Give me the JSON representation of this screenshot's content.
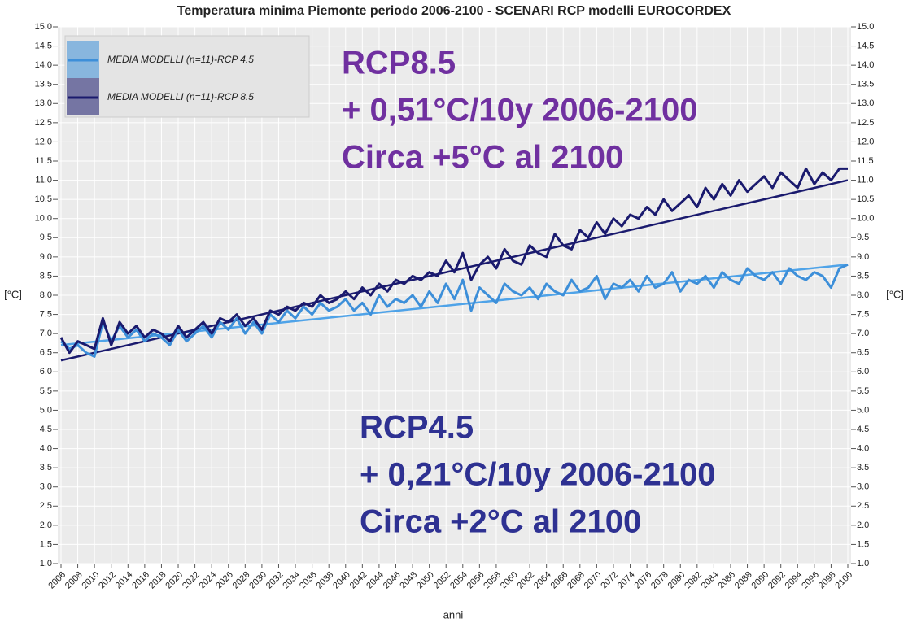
{
  "chart_data": {
    "type": "line",
    "title": "Temperatura minima Piemonte  periodo 2006-2100  - SCENARI RCP  modelli EUROCORDEX",
    "y_label": "[°C]",
    "x_label": "anni",
    "x": [
      2006,
      2007,
      2008,
      2009,
      2010,
      2011,
      2012,
      2013,
      2014,
      2015,
      2016,
      2017,
      2018,
      2019,
      2020,
      2021,
      2022,
      2023,
      2024,
      2025,
      2026,
      2027,
      2028,
      2029,
      2030,
      2031,
      2032,
      2033,
      2034,
      2035,
      2036,
      2037,
      2038,
      2039,
      2040,
      2041,
      2042,
      2043,
      2044,
      2045,
      2046,
      2047,
      2048,
      2049,
      2050,
      2051,
      2052,
      2053,
      2054,
      2055,
      2056,
      2057,
      2058,
      2059,
      2060,
      2061,
      2062,
      2063,
      2064,
      2065,
      2066,
      2067,
      2068,
      2069,
      2070,
      2071,
      2072,
      2073,
      2074,
      2075,
      2076,
      2077,
      2078,
      2079,
      2080,
      2081,
      2082,
      2083,
      2084,
      2085,
      2086,
      2087,
      2088,
      2089,
      2090,
      2091,
      2092,
      2093,
      2094,
      2095,
      2096,
      2097,
      2098,
      2099,
      2100
    ],
    "series": [
      {
        "name": "MEDIA MODELLI (n=11)-RCP 4.5",
        "color": "#3d8fd9",
        "values": [
          6.8,
          6.6,
          6.7,
          6.5,
          6.4,
          7.3,
          6.8,
          7.2,
          6.9,
          7.1,
          6.8,
          7.0,
          6.9,
          6.7,
          7.1,
          6.8,
          7.0,
          7.2,
          6.9,
          7.3,
          7.1,
          7.4,
          7.0,
          7.3,
          7.0,
          7.5,
          7.3,
          7.6,
          7.4,
          7.7,
          7.5,
          7.8,
          7.6,
          7.7,
          7.9,
          7.6,
          7.8,
          7.5,
          8.0,
          7.7,
          7.9,
          7.8,
          8.0,
          7.7,
          8.1,
          7.8,
          8.3,
          7.9,
          8.4,
          7.6,
          8.2,
          8.0,
          7.8,
          8.3,
          8.1,
          8.0,
          8.2,
          7.9,
          8.3,
          8.1,
          8.0,
          8.4,
          8.1,
          8.2,
          8.5,
          7.9,
          8.3,
          8.2,
          8.4,
          8.1,
          8.5,
          8.2,
          8.3,
          8.6,
          8.1,
          8.4,
          8.3,
          8.5,
          8.2,
          8.6,
          8.4,
          8.3,
          8.7,
          8.5,
          8.4,
          8.6,
          8.3,
          8.7,
          8.5,
          8.4,
          8.6,
          8.5,
          8.2,
          8.7,
          8.8
        ]
      },
      {
        "name": "MEDIA MODELLI (n=11)-RCP 8.5",
        "color": "#1a1a6e",
        "values": [
          6.9,
          6.5,
          6.8,
          6.7,
          6.6,
          7.4,
          6.7,
          7.3,
          7.0,
          7.2,
          6.9,
          7.1,
          7.0,
          6.8,
          7.2,
          6.9,
          7.1,
          7.3,
          7.0,
          7.4,
          7.3,
          7.5,
          7.2,
          7.4,
          7.1,
          7.6,
          7.5,
          7.7,
          7.6,
          7.8,
          7.7,
          8.0,
          7.8,
          7.9,
          8.1,
          7.9,
          8.2,
          8.0,
          8.3,
          8.1,
          8.4,
          8.3,
          8.5,
          8.4,
          8.6,
          8.5,
          8.9,
          8.6,
          9.1,
          8.4,
          8.8,
          9.0,
          8.7,
          9.2,
          8.9,
          8.8,
          9.3,
          9.1,
          9.0,
          9.6,
          9.3,
          9.2,
          9.7,
          9.5,
          9.9,
          9.6,
          10.0,
          9.8,
          10.1,
          10.0,
          10.3,
          10.1,
          10.5,
          10.2,
          10.4,
          10.6,
          10.3,
          10.8,
          10.5,
          10.9,
          10.6,
          11.0,
          10.7,
          10.9,
          11.1,
          10.8,
          11.2,
          11.0,
          10.8,
          11.3,
          10.9,
          11.2,
          11.0,
          11.3,
          11.3
        ]
      }
    ],
    "trends": [
      {
        "color": "#4fa3e8",
        "x": [
          2006,
          2100
        ],
        "values": [
          6.7,
          8.8
        ]
      },
      {
        "color": "#1a1a6e",
        "x": [
          2006,
          2100
        ],
        "values": [
          6.3,
          11.0
        ]
      }
    ],
    "annotations": [
      {
        "color": "#7030a0",
        "lines": [
          "RCP8.5",
          "+ 0,51°C/10y 2006-2100",
          "Circa +5°C al 2100"
        ]
      },
      {
        "color": "#2e3192",
        "lines": [
          "RCP4.5",
          "+ 0,21°C/10y 2006-2100",
          "Circa +2°C al 2100"
        ]
      }
    ],
    "xlim": [
      2006,
      2100
    ],
    "xticks": [
      2006,
      2008,
      2010,
      2012,
      2014,
      2016,
      2018,
      2020,
      2022,
      2024,
      2026,
      2028,
      2030,
      2032,
      2034,
      2036,
      2038,
      2040,
      2042,
      2044,
      2046,
      2048,
      2050,
      2052,
      2054,
      2056,
      2058,
      2060,
      2062,
      2064,
      2066,
      2068,
      2070,
      2072,
      2074,
      2076,
      2078,
      2080,
      2082,
      2084,
      2086,
      2088,
      2090,
      2092,
      2094,
      2096,
      2098,
      2100
    ],
    "ylim": [
      1,
      15
    ],
    "yticks": [
      {
        "value": 1,
        "label": "1.0"
      },
      1.5,
      {
        "value": 2,
        "label": "2.0"
      },
      2.5,
      {
        "value": 3,
        "label": "3.0"
      },
      3.5,
      {
        "value": 4,
        "label": "4.0"
      },
      4.5,
      {
        "value": 5,
        "label": "5.0"
      },
      5.5,
      {
        "value": 6,
        "label": "6.0"
      },
      6.5,
      {
        "value": 7,
        "label": "7.0"
      },
      7.5,
      {
        "value": 8,
        "label": "8.0"
      },
      8.5,
      {
        "value": 9,
        "label": "9.0"
      },
      9.5,
      {
        "value": 10,
        "label": "10.0"
      },
      10.5,
      {
        "value": 11,
        "label": "11.0"
      },
      11.5,
      {
        "value": 12,
        "label": "12.0"
      },
      12.5,
      {
        "value": 13,
        "label": "13.0"
      },
      13.5,
      {
        "value": 14,
        "label": "14.0"
      },
      14.5,
      {
        "value": 15,
        "label": "15.0"
      }
    ],
    "grid": true,
    "legend": "top-left"
  }
}
